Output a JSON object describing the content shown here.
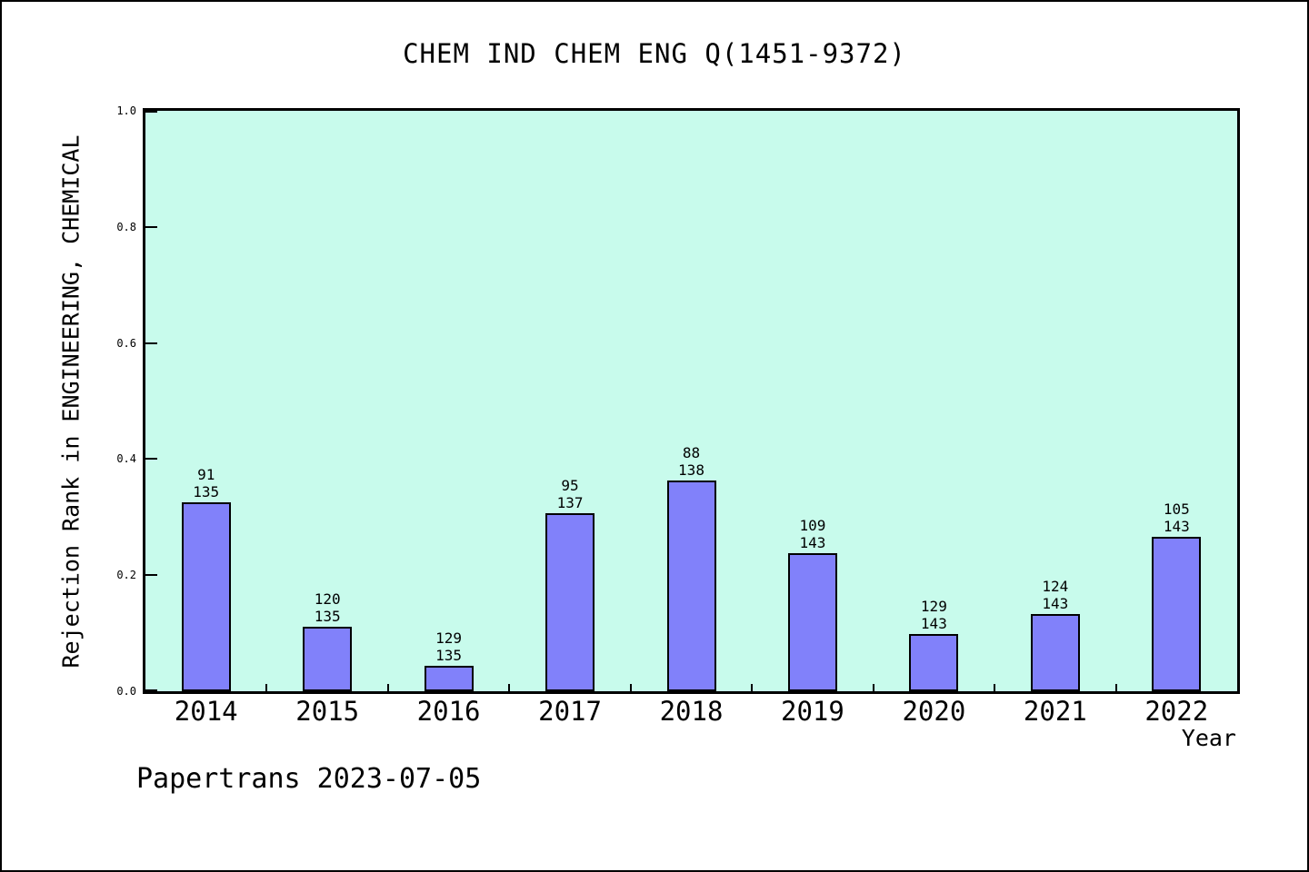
{
  "title": "CHEM IND CHEM ENG Q(1451-9372)",
  "y_axis_label": "Rejection Rank in ENGINEERING, CHEMICAL",
  "x_axis_label": "Year",
  "watermark": "Papertrans 2023-07-05",
  "colors": {
    "bar_fill": "#8181fa",
    "bar_border": "#000000",
    "plot_bg": "#c8fbec",
    "axis": "#000000",
    "page_bg": "#ffffff",
    "text": "#000000"
  },
  "chart_data": {
    "type": "bar",
    "title": "CHEM IND CHEM ENG Q(1451-9372)",
    "xlabel": "Year",
    "ylabel": "Rejection Rank in ENGINEERING, CHEMICAL",
    "ylim": [
      0.0,
      1.0
    ],
    "ytick_values": [
      0.0,
      0.2,
      0.4,
      0.6,
      0.8,
      1.0
    ],
    "ytick_labels": [
      "0.0",
      "0.2",
      "0.4",
      "0.6",
      "0.8",
      "1.0"
    ],
    "grid": false,
    "legend": "none",
    "categories": [
      "2014",
      "2015",
      "2016",
      "2017",
      "2018",
      "2019",
      "2020",
      "2021",
      "2022"
    ],
    "series": [
      {
        "name": "rejection_rank",
        "values": [
          91,
          120,
          129,
          95,
          88,
          109,
          129,
          124,
          105
        ]
      },
      {
        "name": "journal_total",
        "values": [
          135,
          135,
          135,
          137,
          138,
          143,
          143,
          143,
          143
        ]
      }
    ],
    "bar_top_labels": [
      "91\n135",
      "120\n135",
      "129\n135",
      "95\n137",
      "88\n138",
      "109\n143",
      "129\n143",
      "124\n143",
      "105\n143"
    ],
    "bar_fractions": [
      0.3259,
      0.1111,
      0.0444,
      0.3066,
      0.3623,
      0.2378,
      0.0979,
      0.1329,
      0.2657
    ]
  }
}
